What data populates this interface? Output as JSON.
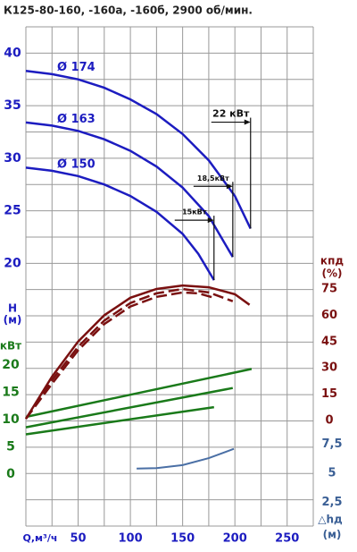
{
  "chart_data": [
    {
      "type": "line",
      "title": "К125-80-160, -160а, -160б, 2900 об/мин.",
      "xlabel": "Q,м³/ч",
      "xlim": [
        0,
        275
      ],
      "xticks": [
        50,
        100,
        150,
        200,
        250
      ],
      "ylabel": [
        "H",
        "(м)"
      ],
      "axis_side": "left",
      "ylim": [
        -5,
        42.5
      ],
      "yticks": [
        20,
        25,
        30,
        35,
        40
      ],
      "series": [
        {
          "name": "Ø 174",
          "color": "#1c1cc0",
          "power_label": "22 кВт",
          "x": [
            0,
            25,
            50,
            75,
            100,
            125,
            150,
            175,
            200,
            215
          ],
          "values": [
            38.3,
            38.0,
            37.5,
            36.7,
            35.6,
            34.2,
            32.3,
            29.8,
            26.4,
            23.3
          ]
        },
        {
          "name": "Ø 163",
          "color": "#1c1cc0",
          "power_label": "18,5кВт",
          "x": [
            0,
            25,
            50,
            75,
            100,
            125,
            150,
            175,
            198
          ],
          "values": [
            33.4,
            33.1,
            32.6,
            31.8,
            30.7,
            29.2,
            27.2,
            24.5,
            20.6
          ]
        },
        {
          "name": "Ø 150",
          "color": "#1c1cc0",
          "power_label": "15кВт",
          "x": [
            0,
            25,
            50,
            75,
            100,
            125,
            150,
            165,
            180
          ],
          "values": [
            29.1,
            28.8,
            28.3,
            27.5,
            26.4,
            24.9,
            22.8,
            20.9,
            18.4
          ]
        }
      ]
    },
    {
      "type": "line",
      "ylabel": [
        "кВт"
      ],
      "axis_side": "left",
      "ylim": [
        -9.5,
        82
      ],
      "yticks": [
        0,
        5,
        10,
        15,
        20
      ],
      "series": [
        {
          "color": "#1a7a1a",
          "x": [
            0,
            216
          ],
          "values": [
            10.5,
            19.3
          ]
        },
        {
          "color": "#1a7a1a",
          "x": [
            0,
            198
          ],
          "values": [
            8.6,
            15.8
          ]
        },
        {
          "color": "#1a7a1a",
          "x": [
            0,
            180
          ],
          "values": [
            7.3,
            12.3
          ]
        }
      ]
    },
    {
      "type": "line",
      "ylabel": [
        "кпд",
        "(%)"
      ],
      "axis_side": "right",
      "ylim": [
        -60.2,
        224.5
      ],
      "yticks": [
        0,
        15,
        30,
        45,
        60,
        75
      ],
      "series": [
        {
          "color": "#7a1010",
          "dashed": false,
          "x": [
            0,
            25,
            50,
            75,
            100,
            125,
            150,
            175,
            200,
            214
          ],
          "values": [
            1,
            25,
            45,
            60,
            70,
            75,
            77,
            76,
            72,
            66
          ]
        },
        {
          "color": "#7a1010",
          "dashed": true,
          "x": [
            0,
            25,
            50,
            75,
            100,
            125,
            150,
            175,
            198
          ],
          "values": [
            1,
            23,
            42,
            57,
            67,
            72.5,
            75,
            73,
            68
          ]
        },
        {
          "color": "#7a1010",
          "dashed": true,
          "x": [
            0,
            25,
            50,
            75,
            100,
            125,
            150,
            165,
            180
          ],
          "values": [
            1,
            21,
            40,
            55,
            65,
            70.5,
            73,
            72.5,
            70
          ]
        }
      ]
    },
    {
      "type": "line",
      "ylabel": [
        "△hд",
        "(м)"
      ],
      "axis_side": "right",
      "ylim": [
        0.46,
        43.4
      ],
      "yticks": [
        {
          "value": 2.5,
          "label": "2,5"
        },
        5,
        {
          "value": 7.5,
          "label": "7,5"
        }
      ],
      "series": [
        {
          "color": "#4a6fa5",
          "x": [
            106,
            125,
            150,
            175,
            199
          ],
          "values": [
            5.4,
            5.45,
            5.7,
            6.3,
            7.1
          ]
        }
      ]
    }
  ]
}
